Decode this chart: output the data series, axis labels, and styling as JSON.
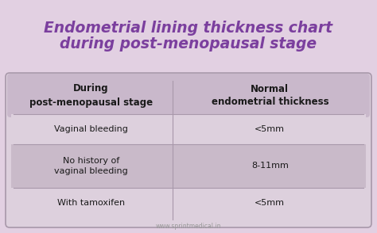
{
  "title_line1": "Endometrial lining thickness chart",
  "title_line2": "during post-menopausal stage",
  "title_color": "#7B3F9E",
  "bg_color": "#E2D0E2",
  "col1_header": "During\npost-menopausal stage",
  "col2_header": "Normal\nendometrial thickness",
  "rows": [
    [
      "Vaginal bleeding",
      "<5mm"
    ],
    [
      "No history of\nvaginal bleeding",
      "8-11mm"
    ],
    [
      "With tamoxifen",
      "<5mm"
    ]
  ],
  "watermark": "www.sprintmedical.in",
  "header_fill": "#C9B8CB",
  "row_fills": [
    "#DDD0DD",
    "#C9BAC9",
    "#DDD0DD"
  ],
  "table_edge": "#A898AA",
  "divider_color": "#A898AA",
  "text_dark": "#1a1a1a"
}
